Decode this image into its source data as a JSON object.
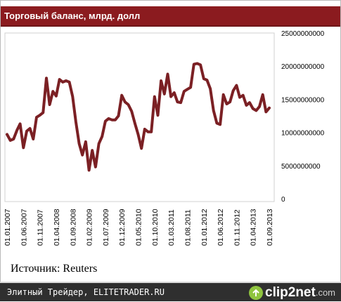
{
  "header": {
    "title": "Торговый баланс, млрд. долл"
  },
  "source_text": "Источник: Reuters",
  "footer": {
    "site_text": "Элитный Трейдер, ELITETRADER.RU",
    "logo_text": "clip2net",
    "logo_suffix": ".com"
  },
  "colors": {
    "title_bg": "#8b1b1f",
    "line": "#7b2024",
    "footer_bg": "#2f2f2f",
    "logo_accent": "#8fc43f"
  },
  "chart_data": {
    "type": "line",
    "title": "Торговый баланс, млрд. долл",
    "xlabel": "",
    "ylabel": "",
    "ylim": [
      0,
      25000000000
    ],
    "y_ticks": [
      0,
      5000000000,
      10000000000,
      15000000000,
      20000000000,
      25000000000
    ],
    "y_tick_labels": [
      "0",
      "5000000000",
      "10000000000",
      "15000000000",
      "20000000000",
      "25000000000"
    ],
    "y_axis_side": "right",
    "grid": false,
    "x_tick_labels": [
      "01.01.2007",
      "01.06.2007",
      "01.11.2007",
      "01.04.2008",
      "01.09.2008",
      "01.02.2009",
      "01.07.2009",
      "01.12.2009",
      "01.05.2010",
      "01.10.2010",
      "01.03.2011",
      "01.08.2011",
      "01.01.2012",
      "01.06.2012",
      "01.11.2012",
      "01.04.2013",
      "01.09.2013"
    ],
    "x_start": "2007-01",
    "series": [
      {
        "values": [
          9700000000,
          8800000000,
          9000000000,
          10300000000,
          11300000000,
          7700000000,
          10200000000,
          10600000000,
          9000000000,
          12300000000,
          12600000000,
          13000000000,
          18200000000,
          14200000000,
          16200000000,
          15500000000,
          18000000000,
          17600000000,
          17800000000,
          17600000000,
          15400000000,
          11600000000,
          8300000000,
          6600000000,
          8600000000,
          4300000000,
          7300000000,
          4800000000,
          8300000000,
          9400000000,
          11700000000,
          12100000000,
          11900000000,
          11900000000,
          12500000000,
          15600000000,
          14600000000,
          14200000000,
          13200000000,
          11400000000,
          9700000000,
          7600000000,
          10500000000,
          10100000000,
          10100000000,
          15400000000,
          12600000000,
          17800000000,
          15800000000,
          18800000000,
          15400000000,
          16000000000,
          14600000000,
          14500000000,
          16200000000,
          16500000000,
          16800000000,
          20300000000,
          20400000000,
          20200000000,
          18100000000,
          17900000000,
          16600000000,
          13300000000,
          11400000000,
          11200000000,
          15700000000,
          14300000000,
          14600000000,
          16300000000,
          17100000000,
          15300000000,
          15600000000,
          14100000000,
          14500000000,
          13600000000,
          13300000000,
          13900000000,
          15700000000,
          13100000000,
          13700000000
        ]
      }
    ]
  }
}
